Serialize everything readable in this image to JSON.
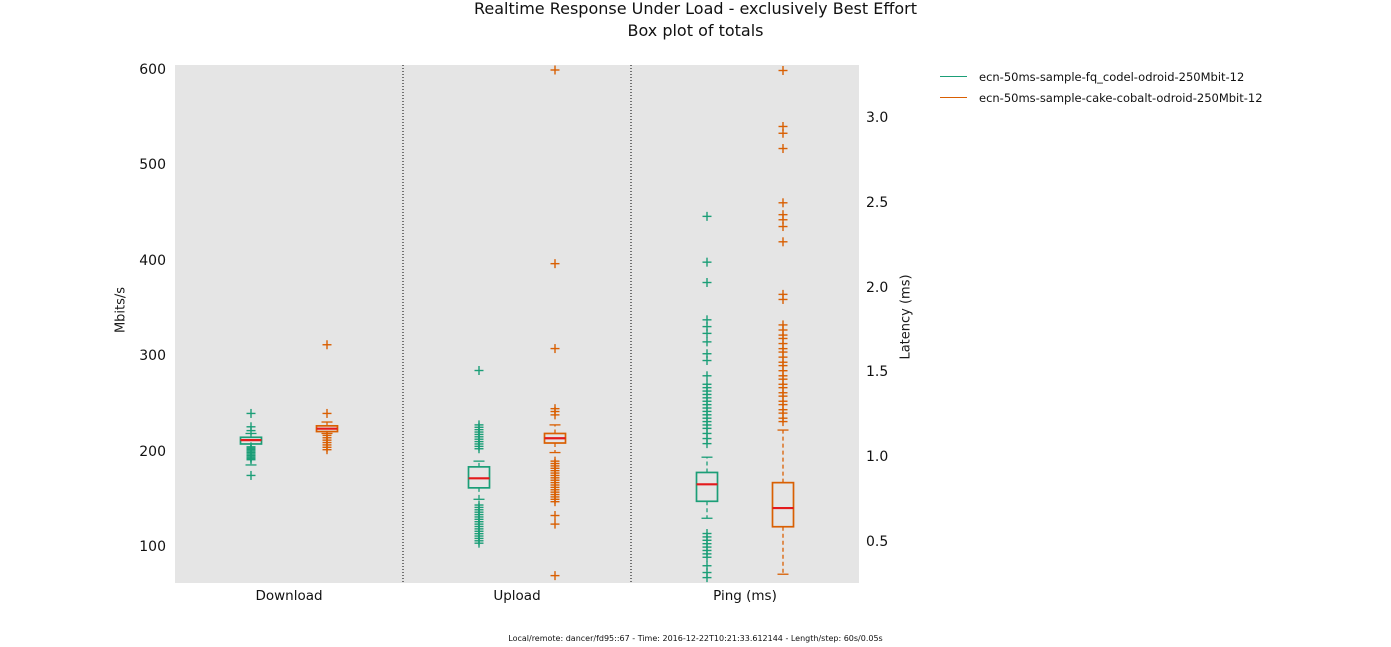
{
  "title": {
    "line1": "Realtime Response Under Load - exclusively Best Effort",
    "line2": "Box plot of totals"
  },
  "footer": "Local/remote: dancer/fd95::67 - Time: 2016-12-22T10:21:33.612144 - Length/step: 60s/0.05s",
  "colors": {
    "plot_background": "#e5e5e5",
    "series1": "#1b9e77",
    "series2": "#d95f02",
    "median": "#e41a1c",
    "separator": "#000000"
  },
  "chart_data": {
    "type": "boxplot",
    "title": "Realtime Response Under Load - exclusively Best Effort",
    "subtitle": "Box plot of totals",
    "categories": [
      "Download",
      "Upload",
      "Ping (ms)"
    ],
    "left_axis": {
      "label": "Mbits/s",
      "ticks": [
        {
          "label": "600",
          "value": 600
        },
        {
          "label": "500",
          "value": 500
        },
        {
          "label": "400",
          "value": 400
        },
        {
          "label": "300",
          "value": 300
        },
        {
          "label": "200",
          "value": 200
        },
        {
          "label": "100",
          "value": 100
        }
      ],
      "range": [
        62,
        605
      ]
    },
    "right_axis": {
      "label": "Latency (ms)",
      "ticks": [
        {
          "label": "3.0",
          "value": 3.0
        },
        {
          "label": "2.5",
          "value": 2.5
        },
        {
          "label": "2.0",
          "value": 2.0
        },
        {
          "label": "1.5",
          "value": 1.5
        },
        {
          "label": "1.0",
          "value": 1.0
        },
        {
          "label": "0.5",
          "value": 0.5
        }
      ],
      "range": [
        0.26,
        3.31
      ]
    },
    "legend_position": "upper-right-outside",
    "grid": false,
    "series": [
      {
        "name": "ecn-50ms-sample-fq_codel-odroid-250Mbit-12",
        "color": "#1b9e77",
        "boxes": [
          {
            "category": "Download",
            "axis": "left",
            "whisker_high": 219,
            "q3": 215,
            "median": 212,
            "q1": 208,
            "whisker_low": 186,
            "fliers_high": [
              240,
              226,
              222
            ],
            "fliers_low": [
              205,
              203.5,
              202,
              200.5,
              199,
              197.5,
              196,
              194.5,
              193,
              191.5,
              175
            ]
          },
          {
            "category": "Upload",
            "axis": "left",
            "whisker_high": 190,
            "q3": 184,
            "median": 172,
            "q1": 162,
            "whisker_low": 150,
            "fliers_high": [
              285,
              228,
              225.5,
              223,
              220.5,
              218,
              215.5,
              213,
              210.5,
              208,
              205.5,
              203
            ],
            "fliers_low": [
              144,
              141.5,
              139,
              136.5,
              134,
              131.5,
              129,
              126.5,
              124,
              121.5,
              119,
              116.5,
              114,
              111.5,
              109,
              106.5,
              104
            ]
          },
          {
            "category": "Ping (ms)",
            "axis": "right",
            "whisker_high": 1.0,
            "q3": 0.91,
            "median": 0.84,
            "q1": 0.74,
            "whisker_low": 0.64,
            "fliers_high": [
              2.42,
              2.15,
              2.03,
              1.81,
              1.77,
              1.73,
              1.68,
              1.61,
              1.57,
              1.48,
              1.43,
              1.41,
              1.39,
              1.37,
              1.35,
              1.33,
              1.31,
              1.29,
              1.27,
              1.25,
              1.23,
              1.21,
              1.19,
              1.17,
              1.14,
              1.11,
              1.08
            ],
            "fliers_low": [
              0.55,
              0.53,
              0.51,
              0.49,
              0.47,
              0.45,
              0.43,
              0.41,
              0.36,
              0.32,
              0.29
            ]
          }
        ]
      },
      {
        "name": "ecn-50ms-sample-cake-cobalt-odroid-250Mbit-12",
        "color": "#d95f02",
        "boxes": [
          {
            "category": "Download",
            "axis": "left",
            "whisker_high": 231,
            "q3": 227,
            "median": 224,
            "q1": 221,
            "whisker_low": 219,
            "fliers_high": [
              312,
              240
            ],
            "fliers_low": [
              217,
              214.5,
              212,
              209.5,
              207,
              204.5,
              202
            ]
          },
          {
            "category": "Upload",
            "axis": "left",
            "whisker_high": 228,
            "q3": 219,
            "median": 214,
            "q1": 209,
            "whisker_low": 199,
            "fliers_high": [
              600,
              397,
              308,
              245,
              242,
              238.5
            ],
            "fliers_low": [
              190,
              187.5,
              185,
              182.5,
              180,
              177.5,
              175,
              172.5,
              170,
              167.5,
              165,
              162.5,
              160,
              157.5,
              155,
              152.5,
              150,
              147.5,
              133,
              124,
              70
            ]
          },
          {
            "category": "Ping (ms)",
            "axis": "right",
            "whisker_high": 1.16,
            "q3": 0.85,
            "median": 0.7,
            "q1": 0.59,
            "whisker_low": 0.31,
            "fliers_high": [
              3.28,
              2.95,
              2.91,
              2.82,
              2.5,
              2.43,
              2.4,
              2.36,
              2.27,
              1.96,
              1.93,
              1.78,
              1.75,
              1.72,
              1.7,
              1.67,
              1.64,
              1.62,
              1.59,
              1.56,
              1.54,
              1.51,
              1.48,
              1.46,
              1.43,
              1.41,
              1.38,
              1.36,
              1.33,
              1.31,
              1.28,
              1.26,
              1.23,
              1.21
            ],
            "fliers_low": []
          }
        ]
      }
    ]
  }
}
